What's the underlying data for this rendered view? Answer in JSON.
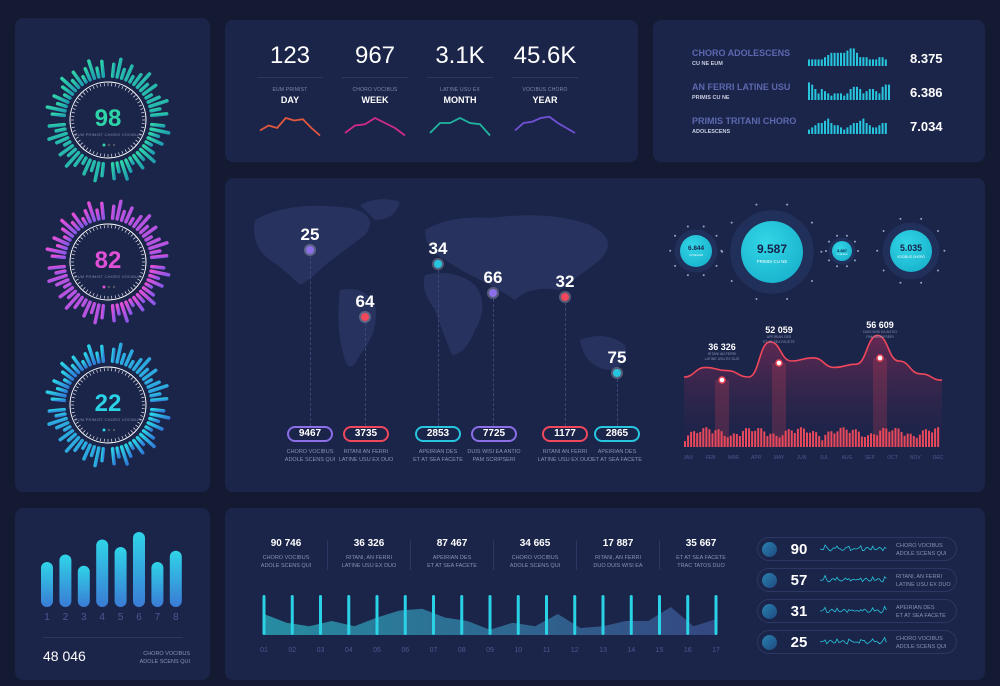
{
  "colors": {
    "bg": "#131a31",
    "panel": "#1b2449",
    "cyan": "#27c5de",
    "red": "#f0475a",
    "green": "#2ed3a8",
    "magenta": "#d44de0",
    "purple": "#7b5fe0"
  },
  "gauges": [
    {
      "value": "98",
      "caption": "EUM PRIMIST CHORO VOCIBUS",
      "colors": [
        "#2ed3a8",
        "#1f9fb0"
      ],
      "level": 0.98
    },
    {
      "value": "82",
      "caption": "EUM PRIMIST CHORO VOCIBUS",
      "colors": [
        "#e04fd8",
        "#8a58e8"
      ],
      "level": 0.82
    },
    {
      "value": "22",
      "caption": "EUM PRIMIST CHORO VOCIBUS",
      "colors": [
        "#2ad2e6",
        "#2f7fd8"
      ],
      "level": 0.22
    }
  ],
  "period_stats": [
    {
      "value": "123",
      "caption": "EUM PRIMIST",
      "period": "DAY",
      "color": "#e2583e",
      "spark": [
        3,
        5,
        4,
        8,
        7,
        7.5,
        4,
        1
      ]
    },
    {
      "value": "967",
      "caption": "CHORO VOCIBUS",
      "period": "WEEK",
      "color": "#d02a8e",
      "spark": [
        2,
        5,
        5.5,
        8,
        6,
        4,
        1
      ]
    },
    {
      "value": "3.1K",
      "caption": "LATINE USU EX",
      "period": "MONTH",
      "color": "#1fb6a0",
      "spark": [
        2,
        6,
        6,
        8,
        6,
        5.5,
        1
      ]
    },
    {
      "value": "45.6K",
      "caption": "VOCIBUS CHORO",
      "period": "YEAR",
      "color": "#7151d6",
      "spark": [
        3,
        6,
        6.5,
        8,
        8.5,
        6,
        4,
        2
      ]
    }
  ],
  "top_right": [
    {
      "title": "CHORO ADOLESCENS",
      "subtitle": "CU NE EUM",
      "value": "8.375",
      "bars": [
        3,
        3,
        3,
        3,
        3,
        4,
        5,
        6,
        6,
        6,
        6,
        6,
        7,
        8,
        8,
        6,
        4,
        4,
        4,
        3,
        3,
        3,
        4,
        4,
        3
      ]
    },
    {
      "title": "AN FERRI LATINE USU",
      "subtitle": "PRIMIS CU NE",
      "value": "6.386",
      "bars": [
        8,
        7,
        5,
        3,
        5,
        4,
        3,
        2,
        3,
        3,
        3,
        2,
        3,
        5,
        6,
        6,
        5,
        3,
        4,
        5,
        5,
        4,
        3,
        6,
        7,
        7
      ]
    },
    {
      "title": "PRIMIS TRITANI CHORO",
      "subtitle": "ADOLESCENS",
      "value": "7.034",
      "bars": [
        2,
        3,
        4,
        5,
        5,
        6,
        7,
        5,
        4,
        4,
        3,
        2,
        3,
        4,
        5,
        5,
        6,
        7,
        5,
        4,
        3,
        3,
        4,
        5,
        5
      ]
    }
  ],
  "map": {
    "pins": [
      {
        "value": "25",
        "color": "#8b6ee8",
        "pill": "9467",
        "pill_color": "#8b6ee8",
        "label": [
          "CHORO VOCIBUS",
          "ADOLE SCENS QUI"
        ]
      },
      {
        "value": "64",
        "color": "#f0475a",
        "pill": "3735",
        "pill_color": "#f0475a",
        "label": [
          "RITANI AN FERRI",
          "LATINE USU EX DUO"
        ]
      },
      {
        "value": "34",
        "color": "#27c5de",
        "pill": "2853",
        "pill_color": "#27c5de",
        "label": [
          "APEIRIAN DES",
          "ET AT SEA FACETE"
        ]
      },
      {
        "value": "66",
        "color": "#8b6ee8",
        "pill": "7725",
        "pill_color": "#8b6ee8",
        "label": [
          "DUIS WISI EA ANTIO",
          "PAM SCRIPSERI"
        ]
      },
      {
        "value": "32",
        "color": "#f0475a",
        "pill": "1177",
        "pill_color": "#f0475a",
        "label": [
          "RITANI AN FERRI",
          "LATINE USU EX DUO"
        ]
      },
      {
        "value": "75",
        "color": "#27c5de",
        "pill": "2865",
        "pill_color": "#27c5de",
        "label": [
          "APEIRIAN DES",
          "ET AT SEA FACETE"
        ]
      }
    ]
  },
  "bubbles": [
    {
      "value": "6.844",
      "caption": "CU NE EUM"
    },
    {
      "value": "9.587",
      "caption": "PRIMIS CU NE"
    },
    {
      "value": "3.887",
      "caption": "CU NE EUM"
    },
    {
      "value": "5.035",
      "caption": "VOCIBUS CHORO"
    }
  ],
  "chart_data": {
    "type": "area",
    "categories": [
      "JAN",
      "FEB",
      "MAR",
      "APR",
      "MAY",
      "JUN",
      "JUL",
      "AUG",
      "SEP",
      "OCT",
      "NOV",
      "DEC"
    ],
    "line": [
      30,
      36,
      34,
      30,
      52,
      40,
      42,
      36,
      38,
      56,
      40,
      32,
      28
    ],
    "annotations": [
      {
        "month": "FEB",
        "value": "36 326",
        "label": [
          "RITANI AN FERRI",
          "LATINE USU EX DUO"
        ]
      },
      {
        "month": "MAY",
        "value": "52 059",
        "label": [
          "APEIRIAN DES",
          "ET AT SEA FACETE"
        ]
      },
      {
        "month": "OCT",
        "value": "56 609",
        "label": [
          "DUIS WISI EA ANTIO",
          "PAM SCRIPSERI"
        ]
      }
    ]
  },
  "bar_widget": {
    "bars": [
      6,
      7,
      5.5,
      9,
      8,
      10,
      6,
      7.5
    ],
    "labels": [
      "1",
      "2",
      "3",
      "4",
      "5",
      "6",
      "7",
      "8"
    ],
    "total": "48 046",
    "caption": [
      "CHORO VOCIBUS",
      "ADOLE SCENS QUI"
    ]
  },
  "timeline": {
    "stats": [
      {
        "value": "90 746",
        "label": [
          "CHORO VOCIBUS",
          "ADOLE SCENS QUI"
        ]
      },
      {
        "value": "36 326",
        "label": [
          "RITANI, AN FERRI",
          "LATINE USU EX DUO"
        ]
      },
      {
        "value": "87 467",
        "label": [
          "APEIRIAN DES",
          "ET AT SEA FACETE"
        ]
      },
      {
        "value": "34 665",
        "label": [
          "CHORO VOCIBUS",
          "ADOLE SCENS QUI"
        ]
      },
      {
        "value": "17 887",
        "label": [
          "RITANI, AN FERRI",
          "DUO DUIS WISI EA"
        ]
      },
      {
        "value": "35 667",
        "label": [
          "ET AT SEA FACETE",
          "TRAC TATOS DUO"
        ]
      }
    ],
    "ticks": [
      "01",
      "02",
      "03",
      "04",
      "05",
      "06",
      "07",
      "08",
      "09",
      "10",
      "11",
      "12",
      "13",
      "14",
      "15",
      "16",
      "17"
    ],
    "wave": [
      6,
      3.5,
      2.5,
      4,
      2.5,
      5,
      7,
      7.5,
      5,
      4,
      1.5,
      3.5,
      2.5,
      6,
      2,
      2.5,
      4,
      4,
      8,
      2.5,
      4.5
    ]
  },
  "list": [
    {
      "value": "90",
      "label": [
        "CHORO VOCIBUS",
        "ADOLE SCENS QUI"
      ]
    },
    {
      "value": "57",
      "label": [
        "RITANI, AN FERRI",
        "LATINE USU EX DUO"
      ]
    },
    {
      "value": "31",
      "label": [
        "APEIRIAN DES",
        "ET AT SEA FACETE"
      ]
    },
    {
      "value": "25",
      "label": [
        "CHORO VOCIBUS",
        "ADOLE SCENS QUI"
      ]
    }
  ]
}
